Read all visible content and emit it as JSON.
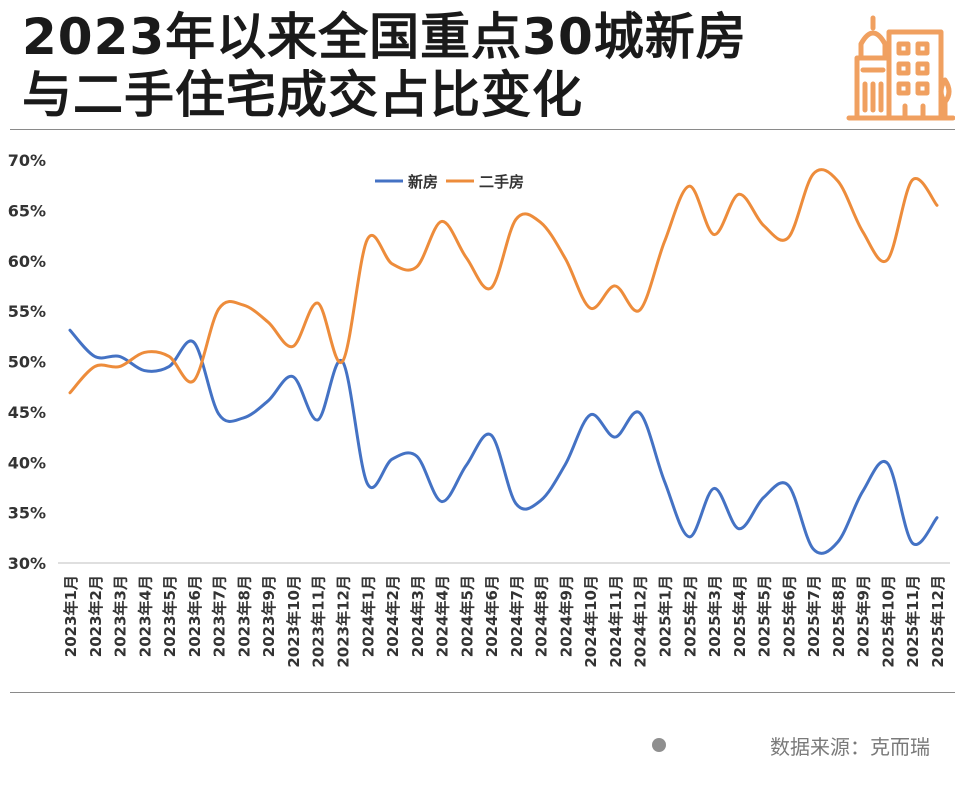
{
  "title": {
    "line1": "2023年以来全国重点30城新房",
    "line2": "与二手住宅成交占比变化"
  },
  "source": "数据来源：克而瑞",
  "colors": {
    "new_home": "#4472C4",
    "second_hand": "#ED8C3B",
    "logo": "#F0A060",
    "axis_text": "#333333",
    "rule": "#8a8a8a"
  },
  "chart_data": {
    "type": "line",
    "title": "",
    "xlabel": "",
    "ylabel": "",
    "ylim": [
      30,
      70
    ],
    "yticks": [
      30,
      35,
      40,
      45,
      50,
      55,
      60,
      65,
      70
    ],
    "ytick_labels": [
      "30%",
      "35%",
      "40%",
      "45%",
      "50%",
      "55%",
      "60%",
      "65%",
      "70%"
    ],
    "grid": false,
    "smooth": true,
    "legend_position": "top-center",
    "categories": [
      "2023年1月",
      "2023年2月",
      "2023年3月",
      "2023年4月",
      "2023年5月",
      "2023年6月",
      "2023年7月",
      "2023年8月",
      "2023年9月",
      "2023年10月",
      "2023年11月",
      "2023年12月",
      "2024年1月",
      "2024年2月",
      "2024年3月",
      "2024年4月",
      "2024年5月",
      "2024年6月",
      "2024年7月",
      "2024年8月",
      "2024年9月",
      "2024年10月",
      "2024年11月",
      "2024年12月",
      "2025年1月",
      "2025年2月",
      "2025年3月",
      "2025年4月",
      "2025年5月",
      "2025年6月",
      "2025年7月",
      "2025年8月",
      "2025年9月",
      "2025年10月",
      "2025年11月",
      "2025年12月"
    ],
    "series": [
      {
        "name": "新房",
        "color": "#4472C4",
        "values": [
          53.1,
          50.5,
          50.5,
          49.1,
          49.5,
          51.9,
          44.8,
          44.4,
          46.1,
          48.5,
          44.2,
          50.0,
          37.9,
          40.3,
          40.6,
          36.1,
          39.7,
          42.7,
          35.9,
          36.2,
          39.8,
          44.7,
          42.5,
          44.9,
          38.1,
          32.6,
          37.4,
          33.4,
          36.5,
          37.7,
          31.4,
          32.1,
          37.1,
          39.9,
          32.0,
          34.5
        ]
      },
      {
        "name": "二手房",
        "color": "#ED8C3B",
        "values": [
          46.9,
          49.5,
          49.5,
          50.9,
          50.5,
          48.1,
          55.2,
          55.6,
          53.9,
          51.5,
          55.8,
          50.0,
          62.1,
          59.7,
          59.4,
          63.9,
          60.3,
          57.3,
          64.1,
          63.8,
          60.2,
          55.3,
          57.5,
          55.1,
          61.9,
          67.4,
          62.6,
          66.6,
          63.5,
          62.3,
          68.6,
          67.9,
          62.9,
          60.1,
          68.0,
          65.5
        ]
      }
    ]
  }
}
